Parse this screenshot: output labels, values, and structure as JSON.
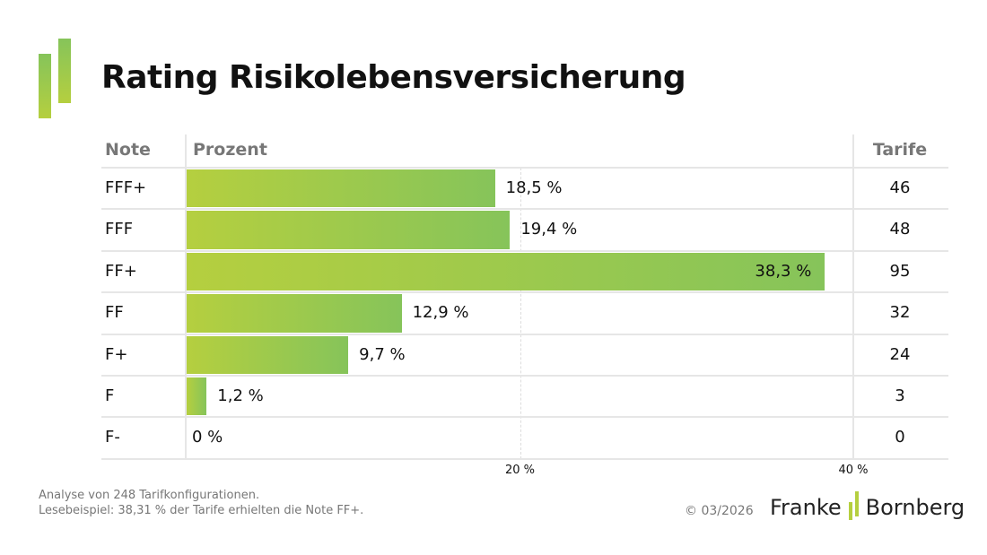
{
  "title": "Rating Risikolebensversicherung",
  "chart_data": {
    "type": "bar",
    "orientation": "horizontal",
    "columns": {
      "note": "Note",
      "percent": "Prozent",
      "tarife": "Tarife"
    },
    "categories": [
      "FFF+",
      "FFF",
      "FF+",
      "FF",
      "F+",
      "F",
      "F-"
    ],
    "values": [
      18.5,
      19.4,
      38.3,
      12.9,
      9.7,
      1.2,
      0
    ],
    "value_labels": [
      "18,5 %",
      "19,4 %",
      "38,3 %",
      "12,9 %",
      "9,7 %",
      "1,2 %",
      "0 %"
    ],
    "tarife": [
      "46",
      "48",
      "95",
      "32",
      "24",
      "3",
      "0"
    ],
    "xlim": [
      0,
      40
    ],
    "xticks": [
      20,
      40
    ],
    "xtick_labels": [
      "20 %",
      "40 %"
    ],
    "bar_color_start": "#b5cf3f",
    "bar_color_end": "#86c45a"
  },
  "footer": {
    "line1": "Analyse von 248 Tarifkonfigurationen.",
    "line2": "Lesebeispiel: 38,31 % der Tarife erhielten die Note FF+.",
    "copyright": "© 03/2026",
    "brand_left": "Franke",
    "brand_right": "Bornberg"
  }
}
